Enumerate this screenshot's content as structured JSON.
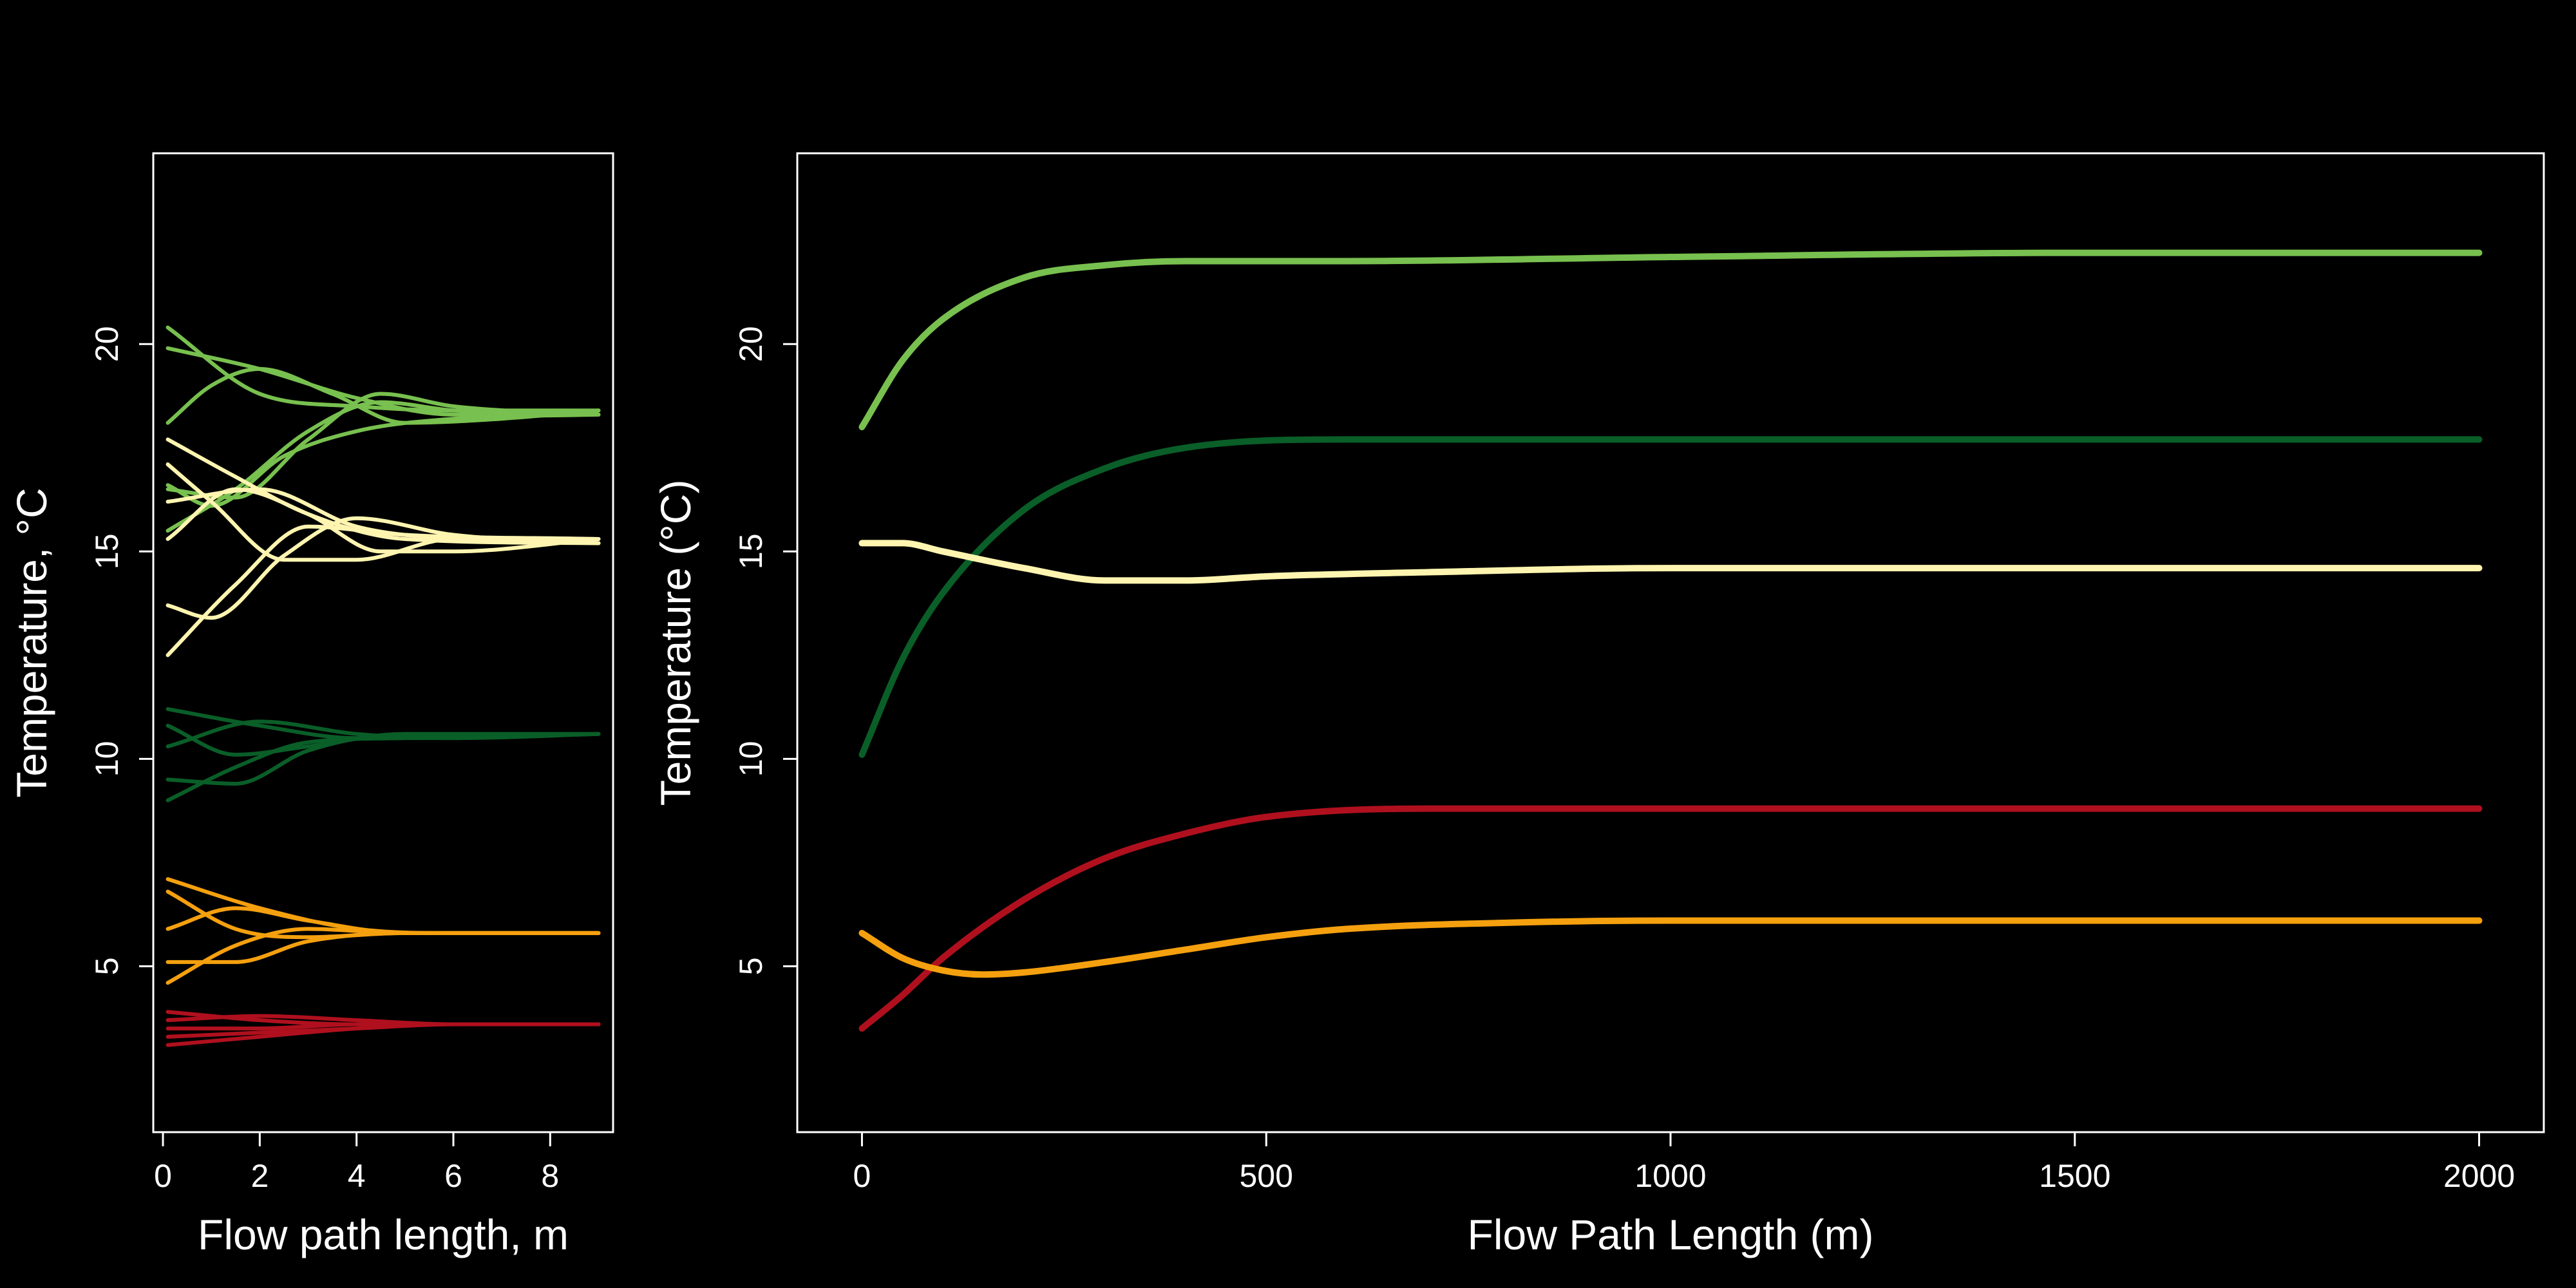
{
  "colors": {
    "background": "#000000",
    "foreground": "#ffffff",
    "light_green": "#78c04f",
    "dark_green": "#0a5e28",
    "cream": "#fff5b0",
    "orange": "#f5a00e",
    "red": "#b0101e"
  },
  "chart_data": [
    {
      "type": "line",
      "title": "",
      "xlabel": "Flow path length, m",
      "ylabel": "Temperature, °C",
      "xlim": [
        -0.2,
        9.3
      ],
      "ylim": [
        1.0,
        24.6
      ],
      "xticks": [
        "0",
        "2",
        "4",
        "6",
        "8"
      ],
      "yticks": [
        "5",
        "10",
        "15",
        "20"
      ],
      "grid": false,
      "legend": "none",
      "series": [
        {
          "color": "light_green",
          "x": [
            0.1,
            2,
            4,
            6,
            9
          ],
          "y": [
            20.4,
            18.8,
            18.5,
            18.4,
            18.4
          ]
        },
        {
          "color": "light_green",
          "x": [
            0.1,
            2,
            4,
            6,
            9
          ],
          "y": [
            19.9,
            19.4,
            18.7,
            18.3,
            18.4
          ]
        },
        {
          "color": "light_green",
          "x": [
            0.1,
            1,
            2,
            3.5,
            5,
            7,
            9
          ],
          "y": [
            18.1,
            19.0,
            19.4,
            18.8,
            18.1,
            18.2,
            18.4
          ]
        },
        {
          "color": "light_green",
          "x": [
            0.1,
            1.5,
            3,
            4.5,
            6,
            9
          ],
          "y": [
            16.5,
            16.3,
            17.7,
            18.8,
            18.5,
            18.3
          ]
        },
        {
          "color": "light_green",
          "x": [
            0.1,
            1.5,
            3,
            4.5,
            6,
            9
          ],
          "y": [
            15.5,
            16.5,
            17.9,
            18.6,
            18.4,
            18.3
          ]
        },
        {
          "color": "light_green",
          "x": [
            0.1,
            1,
            2.5,
            4,
            6,
            9
          ],
          "y": [
            16.6,
            16.1,
            17.3,
            17.9,
            18.2,
            18.3
          ]
        },
        {
          "color": "cream",
          "x": [
            0.1,
            1.5,
            3,
            5,
            9
          ],
          "y": [
            17.7,
            16.8,
            15.9,
            15.3,
            15.2
          ]
        },
        {
          "color": "cream",
          "x": [
            0.1,
            1,
            2.5,
            4,
            6,
            9
          ],
          "y": [
            17.1,
            16.2,
            14.8,
            14.8,
            15.3,
            15.3
          ]
        },
        {
          "color": "cream",
          "x": [
            0.1,
            1.5,
            3,
            4.5,
            6,
            9
          ],
          "y": [
            15.3,
            16.5,
            15.9,
            15.0,
            15.0,
            15.3
          ]
        },
        {
          "color": "cream",
          "x": [
            0.1,
            2,
            4,
            6,
            9
          ],
          "y": [
            16.2,
            16.5,
            15.6,
            15.3,
            15.2
          ]
        },
        {
          "color": "cream",
          "x": [
            0.1,
            1,
            2.5,
            4,
            6,
            9
          ],
          "y": [
            13.7,
            13.4,
            14.9,
            15.8,
            15.4,
            15.2
          ]
        },
        {
          "color": "cream",
          "x": [
            0.1,
            1.5,
            3,
            5,
            9
          ],
          "y": [
            12.5,
            14.2,
            15.6,
            15.4,
            15.3
          ]
        },
        {
          "color": "dark_green",
          "x": [
            0.1,
            2,
            4,
            6,
            9
          ],
          "y": [
            11.2,
            10.8,
            10.5,
            10.5,
            10.6
          ]
        },
        {
          "color": "dark_green",
          "x": [
            0.1,
            1.5,
            3,
            5,
            9
          ],
          "y": [
            10.8,
            10.1,
            10.3,
            10.6,
            10.6
          ]
        },
        {
          "color": "dark_green",
          "x": [
            0.1,
            2,
            4,
            6,
            9
          ],
          "y": [
            10.3,
            10.9,
            10.6,
            10.5,
            10.6
          ]
        },
        {
          "color": "dark_green",
          "x": [
            0.1,
            1.5,
            3,
            5,
            9
          ],
          "y": [
            9.5,
            9.4,
            10.2,
            10.6,
            10.6
          ]
        },
        {
          "color": "dark_green",
          "x": [
            0.1,
            1.5,
            3,
            5,
            9
          ],
          "y": [
            9.0,
            9.8,
            10.4,
            10.5,
            10.6
          ]
        },
        {
          "color": "orange",
          "x": [
            0.1,
            2,
            4,
            6,
            9
          ],
          "y": [
            7.1,
            6.4,
            5.9,
            5.8,
            5.8
          ]
        },
        {
          "color": "orange",
          "x": [
            0.1,
            1.5,
            3,
            5,
            9
          ],
          "y": [
            6.8,
            5.9,
            5.7,
            5.8,
            5.8
          ]
        },
        {
          "color": "orange",
          "x": [
            0.1,
            1.5,
            3,
            5,
            9
          ],
          "y": [
            5.9,
            6.4,
            6.1,
            5.8,
            5.8
          ]
        },
        {
          "color": "orange",
          "x": [
            0.1,
            1.5,
            3,
            5,
            9
          ],
          "y": [
            5.1,
            5.1,
            5.6,
            5.8,
            5.8
          ]
        },
        {
          "color": "orange",
          "x": [
            0.1,
            1.5,
            3,
            5,
            9
          ],
          "y": [
            4.6,
            5.5,
            5.9,
            5.8,
            5.8
          ]
        },
        {
          "color": "red",
          "x": [
            0.1,
            2,
            4,
            6,
            9
          ],
          "y": [
            3.9,
            3.7,
            3.6,
            3.6,
            3.6
          ]
        },
        {
          "color": "red",
          "x": [
            0.1,
            2,
            4,
            6,
            9
          ],
          "y": [
            3.7,
            3.8,
            3.7,
            3.6,
            3.6
          ]
        },
        {
          "color": "red",
          "x": [
            0.1,
            2,
            4,
            6,
            9
          ],
          "y": [
            3.5,
            3.5,
            3.6,
            3.6,
            3.6
          ]
        },
        {
          "color": "red",
          "x": [
            0.1,
            2,
            4,
            6,
            9
          ],
          "y": [
            3.3,
            3.4,
            3.5,
            3.6,
            3.6
          ]
        },
        {
          "color": "red",
          "x": [
            0.1,
            2,
            4,
            6,
            9
          ],
          "y": [
            3.1,
            3.3,
            3.5,
            3.6,
            3.6
          ]
        }
      ]
    },
    {
      "type": "line",
      "title": "",
      "xlabel": "Flow Path Length (m)",
      "ylabel": "Temperature (°C)",
      "xlim": [
        -80,
        2080
      ],
      "ylim": [
        1.0,
        24.6
      ],
      "xticks": [
        "0",
        "500",
        "1000",
        "1500",
        "2000"
      ],
      "yticks": [
        "5",
        "10",
        "15",
        "20"
      ],
      "grid": false,
      "legend": "none",
      "series": [
        {
          "color": "light_green",
          "x": [
            0,
            50,
            100,
            200,
            300,
            400,
            600,
            1000,
            1500,
            2000
          ],
          "y": [
            18.0,
            19.6,
            20.6,
            21.6,
            21.9,
            22.0,
            22.0,
            22.1,
            22.2,
            22.2
          ]
        },
        {
          "color": "dark_green",
          "x": [
            0,
            50,
            100,
            200,
            300,
            400,
            600,
            1000,
            1500,
            2000
          ],
          "y": [
            10.1,
            12.4,
            14.0,
            16.0,
            17.0,
            17.5,
            17.7,
            17.7,
            17.7,
            17.7
          ]
        },
        {
          "color": "cream",
          "x": [
            0,
            50,
            100,
            200,
            300,
            400,
            500,
            700,
            1000,
            1500,
            2000
          ],
          "y": [
            15.2,
            15.2,
            15.0,
            14.6,
            14.3,
            14.3,
            14.4,
            14.5,
            14.6,
            14.6,
            14.6
          ]
        },
        {
          "color": "red",
          "x": [
            0,
            50,
            100,
            200,
            300,
            400,
            500,
            700,
            1000,
            1500,
            2000
          ],
          "y": [
            3.5,
            4.3,
            5.2,
            6.6,
            7.6,
            8.2,
            8.6,
            8.8,
            8.8,
            8.8,
            8.8
          ]
        },
        {
          "color": "orange",
          "x": [
            0,
            50,
            100,
            150,
            200,
            300,
            400,
            500,
            600,
            800,
            1000,
            1500,
            2000
          ],
          "y": [
            5.8,
            5.2,
            4.9,
            4.8,
            4.85,
            5.1,
            5.4,
            5.7,
            5.9,
            6.05,
            6.1,
            6.1,
            6.1
          ]
        }
      ]
    }
  ]
}
